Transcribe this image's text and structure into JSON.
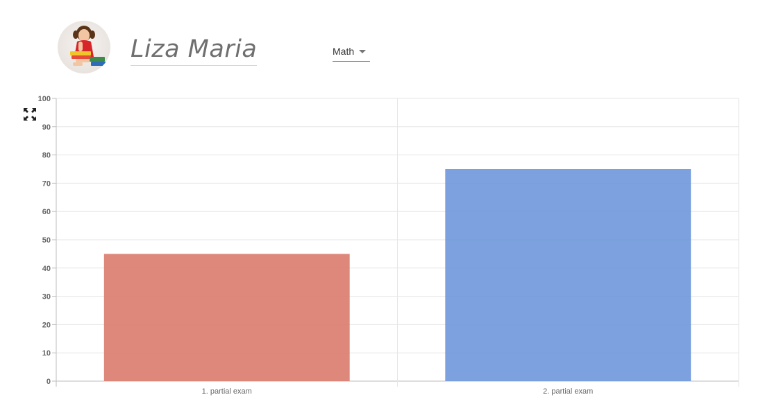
{
  "student": {
    "name": "Liza Maria"
  },
  "subject_select": {
    "selected": "Math"
  },
  "colors": {
    "bar_1": "#d9786a",
    "bar_2": "#6a94da",
    "grid": "#e6e6e6",
    "axis": "#bdbdbd"
  },
  "chart_data": {
    "type": "bar",
    "categories": [
      "1. partial exam",
      "2. partial exam"
    ],
    "values": [
      45,
      75
    ],
    "ylim": [
      0,
      100
    ],
    "yticks": [
      0,
      10,
      20,
      30,
      40,
      50,
      60,
      70,
      80,
      90,
      100
    ],
    "grid": true,
    "legend": false
  }
}
